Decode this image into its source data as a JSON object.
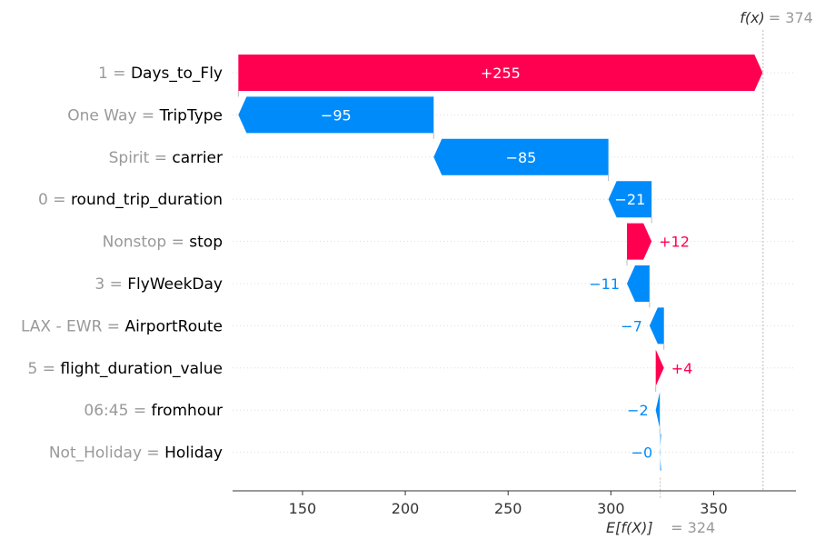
{
  "chart_data": {
    "type": "waterfall",
    "title": "",
    "xlabel": "",
    "base_value": 324,
    "base_value_label": "E[f(X)]",
    "base_value_text": "= 324",
    "output_value": 374,
    "output_value_label": "f(x)",
    "output_value_text": "= 374",
    "xlim": [
      116,
      390
    ],
    "xticks": [
      150,
      200,
      250,
      300,
      350
    ],
    "features": [
      {
        "value_label": "1",
        "feature": "Days_to_Fly",
        "contribution": 255,
        "label": "+255"
      },
      {
        "value_label": "One Way",
        "feature": "TripType",
        "contribution": -95,
        "label": "−95"
      },
      {
        "value_label": "Spirit",
        "feature": "carrier",
        "contribution": -85,
        "label": "−85"
      },
      {
        "value_label": "0",
        "feature": "round_trip_duration",
        "contribution": -21,
        "label": "−21"
      },
      {
        "value_label": "Nonstop",
        "feature": "stop",
        "contribution": 12,
        "label": "+12"
      },
      {
        "value_label": "3",
        "feature": "FlyWeekDay",
        "contribution": -11,
        "label": "−11"
      },
      {
        "value_label": "LAX - EWR",
        "feature": "AirportRoute",
        "contribution": -7,
        "label": "−7"
      },
      {
        "value_label": "5",
        "feature": "flight_duration_value",
        "contribution": 4,
        "label": "+4"
      },
      {
        "value_label": "06:45",
        "feature": "fromhour",
        "contribution": -2,
        "label": "−2"
      },
      {
        "value_label": "Not_Holiday",
        "feature": "Holiday",
        "contribution": -0.2,
        "label": "−0"
      }
    ],
    "colors": {
      "positive": "#ff0051",
      "negative": "#008bfb",
      "muted": "#999999",
      "text": "#000000"
    },
    "grid": false
  }
}
